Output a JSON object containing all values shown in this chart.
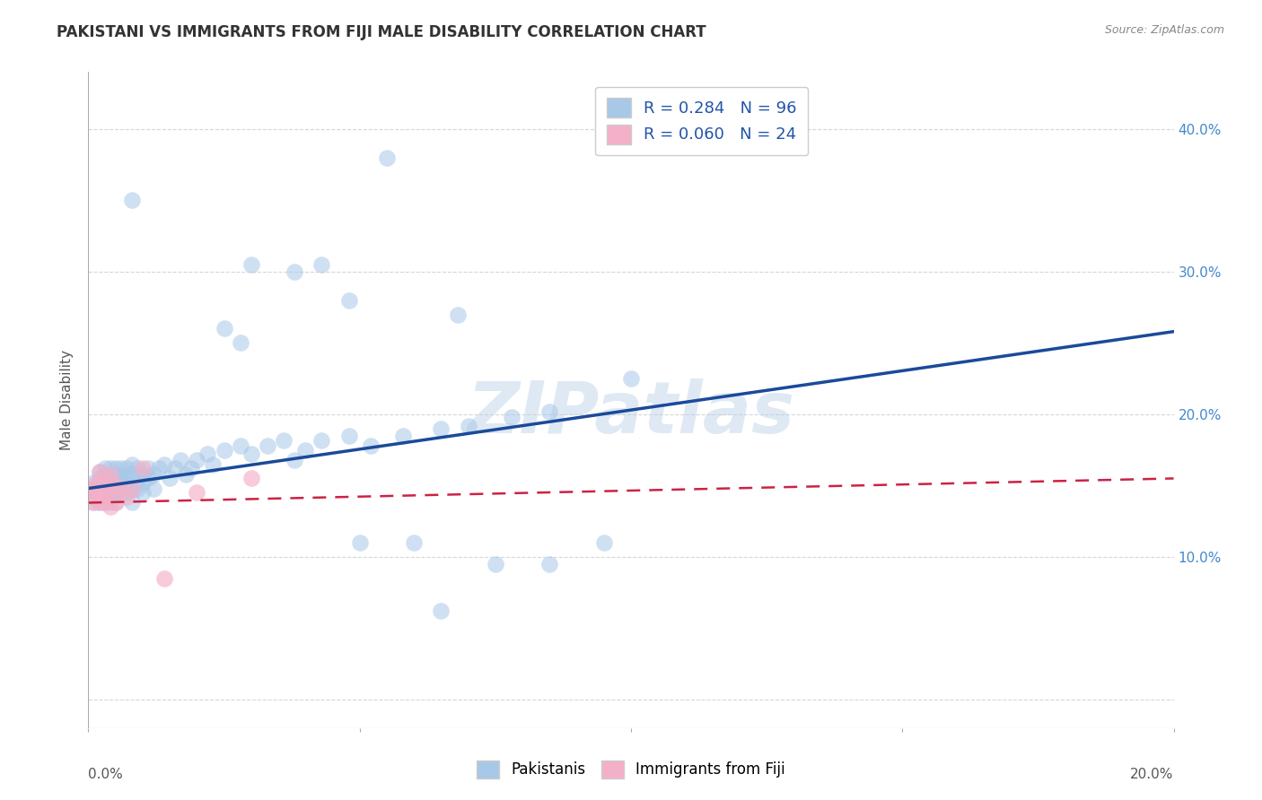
{
  "title": "PAKISTANI VS IMMIGRANTS FROM FIJI MALE DISABILITY CORRELATION CHART",
  "source": "Source: ZipAtlas.com",
  "ylabel": "Male Disability",
  "xlim": [
    0.0,
    0.2
  ],
  "ylim": [
    -0.02,
    0.44
  ],
  "r_pakistani": 0.284,
  "n_pakistani": 96,
  "r_fiji": 0.06,
  "n_fiji": 24,
  "pakistani_color": "#a8c8e8",
  "fiji_color": "#f4b0c8",
  "trendline_pakistani_color": "#1a4a9a",
  "trendline_fiji_color": "#cc2244",
  "background_color": "#ffffff",
  "grid_color": "#cccccc",
  "watermark": "ZIPatlas",
  "pak_trendline_x0": 0.0,
  "pak_trendline_y0": 0.148,
  "pak_trendline_x1": 0.2,
  "pak_trendline_y1": 0.258,
  "fiji_trendline_x0": 0.0,
  "fiji_trendline_y0": 0.138,
  "fiji_trendline_x1": 0.2,
  "fiji_trendline_y1": 0.155,
  "pak_x": [
    0.001,
    0.001,
    0.001,
    0.001,
    0.002,
    0.002,
    0.002,
    0.002,
    0.002,
    0.002,
    0.002,
    0.003,
    0.003,
    0.003,
    0.003,
    0.003,
    0.003,
    0.003,
    0.003,
    0.004,
    0.004,
    0.004,
    0.004,
    0.004,
    0.004,
    0.004,
    0.005,
    0.005,
    0.005,
    0.005,
    0.005,
    0.005,
    0.006,
    0.006,
    0.006,
    0.006,
    0.006,
    0.007,
    0.007,
    0.007,
    0.007,
    0.008,
    0.008,
    0.008,
    0.008,
    0.009,
    0.009,
    0.009,
    0.01,
    0.01,
    0.01,
    0.011,
    0.011,
    0.012,
    0.012,
    0.013,
    0.014,
    0.015,
    0.016,
    0.017,
    0.018,
    0.019,
    0.02,
    0.022,
    0.023,
    0.025,
    0.028,
    0.03,
    0.033,
    0.036,
    0.038,
    0.04,
    0.043,
    0.048,
    0.052,
    0.058,
    0.065,
    0.07,
    0.078,
    0.085,
    0.008,
    0.028,
    0.043,
    0.055,
    0.068,
    0.085,
    0.095,
    0.1,
    0.05,
    0.06,
    0.025,
    0.048,
    0.03,
    0.065,
    0.038,
    0.075
  ],
  "pak_y": [
    0.145,
    0.148,
    0.152,
    0.138,
    0.148,
    0.145,
    0.15,
    0.155,
    0.138,
    0.142,
    0.16,
    0.148,
    0.152,
    0.138,
    0.145,
    0.15,
    0.158,
    0.142,
    0.162,
    0.148,
    0.152,
    0.158,
    0.145,
    0.162,
    0.138,
    0.155,
    0.148,
    0.155,
    0.162,
    0.145,
    0.138,
    0.152,
    0.158,
    0.145,
    0.162,
    0.148,
    0.155,
    0.152,
    0.145,
    0.162,
    0.155,
    0.148,
    0.158,
    0.165,
    0.138,
    0.155,
    0.162,
    0.148,
    0.152,
    0.158,
    0.145,
    0.162,
    0.155,
    0.148,
    0.158,
    0.162,
    0.165,
    0.155,
    0.162,
    0.168,
    0.158,
    0.162,
    0.168,
    0.172,
    0.165,
    0.175,
    0.178,
    0.172,
    0.178,
    0.182,
    0.168,
    0.175,
    0.182,
    0.185,
    0.178,
    0.185,
    0.19,
    0.192,
    0.198,
    0.202,
    0.35,
    0.25,
    0.305,
    0.38,
    0.27,
    0.095,
    0.11,
    0.225,
    0.11,
    0.11,
    0.26,
    0.28,
    0.305,
    0.062,
    0.3,
    0.095
  ],
  "fiji_x": [
    0.001,
    0.001,
    0.001,
    0.001,
    0.002,
    0.002,
    0.002,
    0.002,
    0.003,
    0.003,
    0.003,
    0.003,
    0.004,
    0.004,
    0.004,
    0.005,
    0.005,
    0.006,
    0.007,
    0.008,
    0.01,
    0.014,
    0.02,
    0.03
  ],
  "fiji_y": [
    0.148,
    0.142,
    0.15,
    0.138,
    0.152,
    0.145,
    0.138,
    0.16,
    0.148,
    0.138,
    0.155,
    0.142,
    0.148,
    0.158,
    0.135,
    0.15,
    0.138,
    0.148,
    0.142,
    0.148,
    0.162,
    0.085,
    0.145,
    0.155
  ]
}
